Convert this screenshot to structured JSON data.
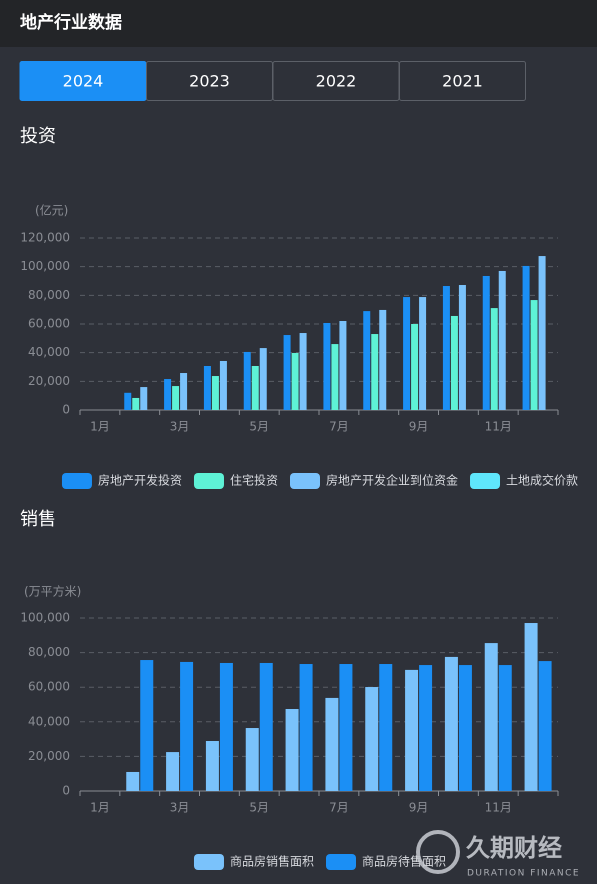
{
  "header": {
    "title": "地产行业数据"
  },
  "tabs": [
    "2024",
    "2023",
    "2022",
    "2021"
  ],
  "watermark": {
    "brand": "久期财经",
    "tagline": "DURATION FINANCE"
  },
  "chart_data": [
    {
      "type": "bar",
      "title": "投资",
      "y_label": "(亿元)",
      "categories": [
        "1月",
        null,
        "3月",
        null,
        "5月",
        null,
        "7月",
        null,
        "9月",
        null,
        "11月",
        null
      ],
      "series": [
        {
          "name": "房地产开发投资",
          "color": "#1b8ff5",
          "values": [
            null,
            12000,
            21600,
            30700,
            40500,
            52300,
            60700,
            69000,
            78800,
            86500,
            93500,
            100500
          ]
        },
        {
          "name": "住宅投资",
          "color": "#5ef2d6",
          "values": [
            null,
            8400,
            16700,
            23700,
            30700,
            39800,
            46000,
            53000,
            60000,
            65600,
            71100,
            76700
          ]
        },
        {
          "name": "房地产开发企业到位资金",
          "color": "#7ac2fb",
          "values": [
            null,
            16000,
            25800,
            34200,
            43200,
            53700,
            62100,
            69800,
            78800,
            87200,
            97000,
            107400
          ]
        },
        {
          "name": "土地成交价款",
          "color": "#5fe6fb",
          "values": [
            null,
            null,
            null,
            null,
            null,
            null,
            null,
            null,
            null,
            null,
            null,
            null
          ]
        }
      ],
      "ylim": [
        0,
        120000
      ],
      "yticks": [
        0,
        {
          "value": 20000,
          "label": "20,000"
        },
        {
          "value": 40000,
          "label": "40,000"
        },
        {
          "value": 60000,
          "label": "60,000"
        },
        {
          "value": 80000,
          "label": "80,000"
        },
        {
          "value": 100000,
          "label": "100,000"
        },
        {
          "value": 120000,
          "label": "120,000"
        }
      ],
      "grid": true,
      "legend": "bottom"
    },
    {
      "type": "bar",
      "title": "销售",
      "y_label": "(万平方米)",
      "categories": [
        "1月",
        null,
        "3月",
        null,
        "5月",
        null,
        "7月",
        null,
        "9月",
        null,
        "11月",
        null
      ],
      "series": [
        {
          "name": "商品房销售面积",
          "color": "#7ac2fb",
          "values": [
            null,
            11000,
            22500,
            28900,
            36400,
            47400,
            53800,
            60100,
            70000,
            77500,
            85500,
            97100
          ]
        },
        {
          "name": "商品房待售面积",
          "color": "#1b8ff5",
          "values": [
            null,
            75700,
            74600,
            74000,
            74000,
            73400,
            73400,
            73400,
            72800,
            72800,
            72800,
            75100
          ]
        }
      ],
      "ylim": [
        0,
        100000
      ],
      "yticks": [
        0,
        {
          "value": 20000,
          "label": "20,000"
        },
        {
          "value": 40000,
          "label": "40,000"
        },
        {
          "value": 60000,
          "label": "60,000"
        },
        {
          "value": 80000,
          "label": "80,000"
        },
        {
          "value": 100000,
          "label": "100,000"
        }
      ],
      "grid": true,
      "legend": "bottom"
    }
  ]
}
